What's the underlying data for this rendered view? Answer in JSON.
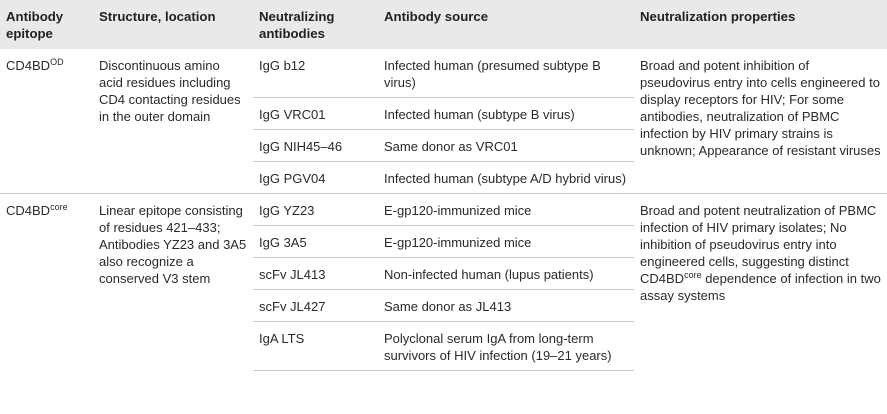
{
  "headers": {
    "epitope": "Antibody epitope",
    "structure": "Structure, location",
    "neutralizing": "Neutralizing antibodies",
    "source": "Antibody source",
    "properties": "Neutralization properties"
  },
  "groups": [
    {
      "epitope_base": "CD4BD",
      "epitope_sup": "OD",
      "structure": "Discontinuous amino acid residues including CD4 contacting residues in the outer domain",
      "properties": "Broad and potent inhibition of pseudovirus entry into cells engineered to display receptors for HIV; For some antibodies, neutralization of PBMC infection by HIV primary strains is unknown; Appearance of resistant viruses",
      "rows": [
        {
          "antibody": "IgG b12",
          "source": "Infected human (presumed subtype B virus)"
        },
        {
          "antibody": "IgG VRC01",
          "source": "Infected human (subtype B virus)"
        },
        {
          "antibody": "IgG NIH45–46",
          "source": "Same donor as VRC01"
        },
        {
          "antibody": "IgG PGV04",
          "source": "Infected human (subtype A/D hybrid virus)"
        }
      ]
    },
    {
      "epitope_base": "CD4BD",
      "epitope_sup": "core",
      "structure": "Linear epitope consisting of residues 421–433; Antibodies YZ23 and 3A5 also recognize a conserved V3 stem",
      "properties_pre": "Broad and potent neutralization of PBMC infection of HIV primary isolates; No inhibition of pseudovirus entry into engineered cells, suggesting distinct CD4BD",
      "properties_sup": "core",
      "properties_post": " dependence of infection in two assay systems",
      "rows": [
        {
          "antibody": "IgG YZ23",
          "source": "E-gp120-immunized mice"
        },
        {
          "antibody": "IgG 3A5",
          "source": "E-gp120-immunized mice"
        },
        {
          "antibody": "scFv JL413",
          "source": "Non-infected human (lupus patients)"
        },
        {
          "antibody": "scFv JL427",
          "source": "Same donor as JL413"
        },
        {
          "antibody": "IgA LTS",
          "source": "Polyclonal serum IgA from long-term survivors of HIV infection (19–21 years)"
        }
      ]
    }
  ]
}
